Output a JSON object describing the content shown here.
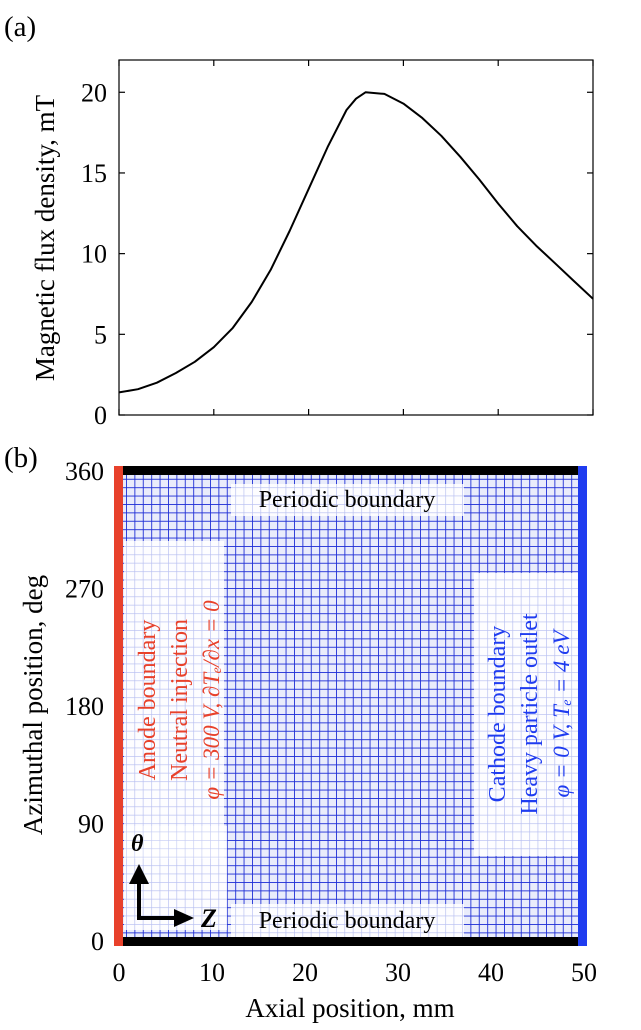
{
  "panel_a": {
    "label": "(a)",
    "chart_data": {
      "type": "line",
      "title": "",
      "xlabel": "",
      "ylabel": "Magnetic flux density, mT",
      "xlim": [
        0,
        50
      ],
      "ylim": [
        0,
        22
      ],
      "yticks": [
        "0",
        "5",
        "10",
        "15",
        "20"
      ],
      "ytick_values": [
        0,
        5,
        10,
        15,
        20
      ],
      "xtick_values": [
        0,
        10,
        20,
        30,
        40,
        50
      ],
      "series": [
        {
          "name": "Magnetic flux density",
          "x": [
            0,
            2,
            4,
            6,
            8,
            10,
            12,
            14,
            16,
            18,
            20,
            22,
            24,
            25,
            26,
            28,
            30,
            32,
            34,
            36,
            38,
            40,
            42,
            44,
            46,
            48,
            50
          ],
          "y": [
            1.4,
            1.6,
            2.0,
            2.6,
            3.3,
            4.2,
            5.4,
            7.0,
            9.0,
            11.4,
            14.0,
            16.6,
            18.9,
            19.6,
            20.0,
            19.9,
            19.3,
            18.4,
            17.3,
            16.0,
            14.6,
            13.1,
            11.7,
            10.5,
            9.4,
            8.3,
            7.2
          ],
          "color": "#000000"
        }
      ]
    }
  },
  "panel_b": {
    "label": "(b)",
    "chart_data": {
      "type": "heatmap",
      "title": "",
      "xlabel": "Axial position, mm",
      "ylabel": "Azimuthal position, deg",
      "xlim": [
        0,
        50
      ],
      "ylim": [
        0,
        360
      ],
      "xticks": [
        "0",
        "10",
        "20",
        "30",
        "40",
        "50"
      ],
      "xtick_values": [
        0,
        10,
        20,
        30,
        40,
        50
      ],
      "yticks": [
        "0",
        "90",
        "180",
        "270",
        "360"
      ],
      "ytick_values": [
        0,
        90,
        180,
        270,
        360
      ],
      "grid_color": "#1f2fd6",
      "anode_color": "#e8412b",
      "cathode_color": "#1f3cf0",
      "periodic_color": "#000000"
    },
    "labels": {
      "periodic_top": "Periodic boundary",
      "periodic_bottom": "Periodic boundary",
      "anode_line1": "Anode boundary",
      "anode_line2": "Neutral injection",
      "anode_line3": "φ = 300 V,  ∂Tₑ/∂x = 0",
      "cathode_line1": "Cathode boundary",
      "cathode_line2": "Heavy particle outlet",
      "cathode_line3": "φ = 0 V,  Tₑ = 4 eV",
      "theta_label": "θ",
      "z_label": "Z"
    }
  }
}
